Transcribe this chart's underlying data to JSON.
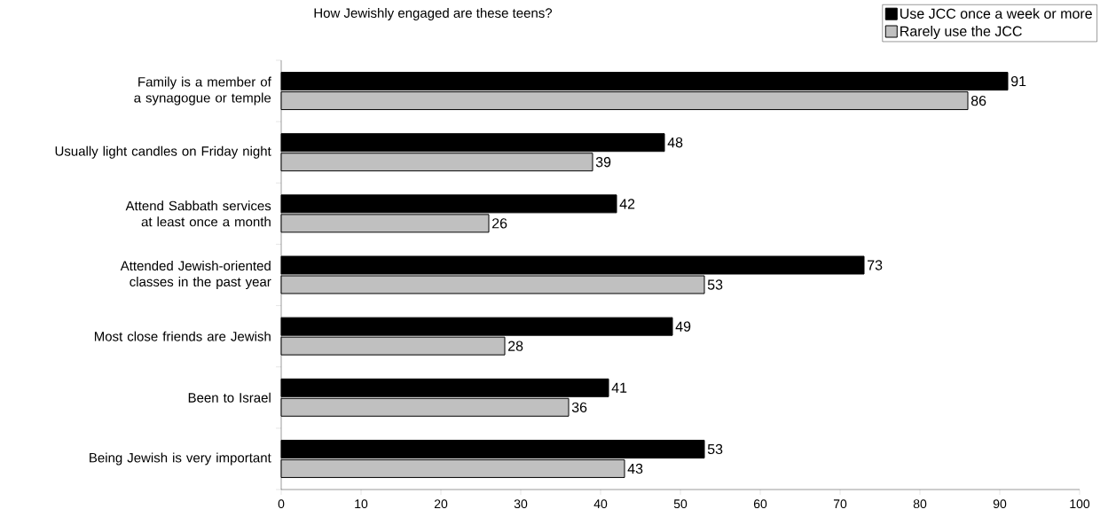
{
  "chart_data": {
    "type": "bar",
    "orientation": "horizontal",
    "title": "How Jewishly engaged are these teens?",
    "categories": [
      "Family is a member of a synagogue or temple",
      "Usually light candles on Friday night",
      "Attend Sabbath services at least once a month",
      "Attended Jewish-oriented classes in the past year",
      "Most close friends are Jewish",
      "Been to Israel",
      "Being Jewish is very important"
    ],
    "series": [
      {
        "name": "Use JCC once a week or more",
        "color": "#000000",
        "values": [
          91,
          48,
          42,
          73,
          49,
          41,
          53
        ]
      },
      {
        "name": "Rarely use the JCC",
        "color": "#c0c0c0",
        "values": [
          86,
          39,
          26,
          53,
          28,
          36,
          43
        ]
      }
    ],
    "xlim": [
      0,
      100
    ],
    "xticks": [
      0,
      10,
      20,
      30,
      40,
      50,
      60,
      70,
      80,
      90,
      100
    ],
    "data_labels": true,
    "legend": "top right",
    "grid": false
  }
}
